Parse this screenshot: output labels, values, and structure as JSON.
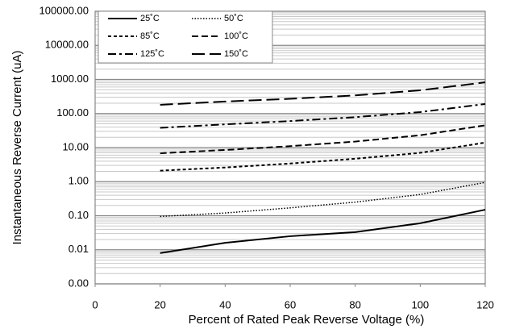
{
  "chart_data": {
    "type": "line",
    "xlabel": "Percent of  Rated Peak Reverse Voltage (%)",
    "ylabel": "Instantaneous Reverse Current (uA)",
    "x": [
      20,
      40,
      60,
      80,
      100,
      120
    ],
    "series": [
      {
        "name": "25˚C",
        "color": "#000000",
        "style": "solid",
        "values": [
          0.008,
          0.016,
          0.025,
          0.033,
          0.06,
          0.15
        ]
      },
      {
        "name": "50˚C",
        "color": "#000000",
        "style": "dotted",
        "values": [
          0.095,
          0.12,
          0.17,
          0.25,
          0.42,
          0.95
        ]
      },
      {
        "name": "85˚C",
        "color": "#000000",
        "style": "short-dash",
        "values": [
          2.1,
          2.6,
          3.4,
          4.7,
          7,
          14
        ]
      },
      {
        "name": "100˚C",
        "color": "#000000",
        "style": "dash",
        "values": [
          6.8,
          8.5,
          11,
          15,
          23,
          45
        ]
      },
      {
        "name": "125˚C",
        "color": "#000000",
        "style": "dash-dot",
        "values": [
          38,
          48,
          60,
          78,
          110,
          190
        ]
      },
      {
        "name": "150˚C",
        "color": "#000000",
        "style": "long-dash",
        "values": [
          180,
          225,
          270,
          340,
          480,
          820
        ]
      }
    ],
    "xlim": [
      0,
      120
    ],
    "xticks": [
      0,
      20,
      40,
      60,
      80,
      100,
      120
    ],
    "ylim": [
      0.001,
      100000
    ],
    "log_y": true,
    "yticks": [
      {
        "value": 0.001,
        "label": "0.00"
      },
      {
        "value": 0.01,
        "label": "0.01"
      },
      {
        "value": 0.1,
        "label": "0.10"
      },
      {
        "value": 1,
        "label": "1.00"
      },
      {
        "value": 10,
        "label": "10.00"
      },
      {
        "value": 100,
        "label": "100.00"
      },
      {
        "value": 1000,
        "label": "1000.00"
      },
      {
        "value": 10000,
        "label": "10000.00"
      },
      {
        "value": 100000,
        "label": "100000.00"
      }
    ],
    "grid": true,
    "minor_grid": true,
    "legend": "upper left"
  }
}
